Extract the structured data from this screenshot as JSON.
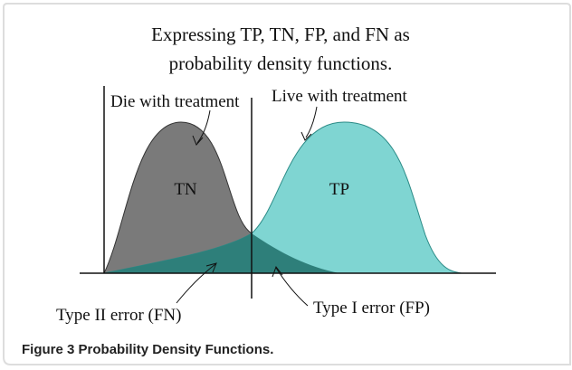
{
  "figure": {
    "title_lines": [
      "Expressing TP, TN, FP, and FN as",
      "probability density functions."
    ],
    "left_label": "Die with treatment",
    "right_label": "Live with treatment",
    "left_region": "TN",
    "right_region": "TP",
    "fn_label": "Type II error (FN)",
    "fp_label": "Type I error (FP)"
  },
  "caption": {
    "label": "Figure 3",
    "text": "Probability Density Functions."
  }
}
